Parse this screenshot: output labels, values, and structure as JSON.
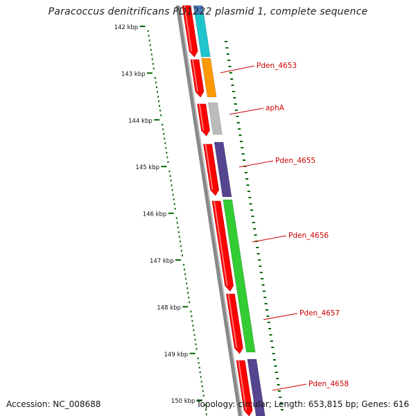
{
  "title": "Paracoccus denitrificans PD1222 plasmid 1, complete sequence",
  "accession": {
    "label": "Accession:",
    "value": "NC_008688"
  },
  "topology": {
    "label": "Topology:",
    "value": "circular"
  },
  "length": {
    "label": "Length:",
    "value": "653,815 bp"
  },
  "genes": {
    "label": "Genes:",
    "value": "616"
  },
  "ticks": [
    {
      "kbp": 142,
      "label": "142 kbp"
    },
    {
      "kbp": 143,
      "label": "143 kbp"
    },
    {
      "kbp": 144,
      "label": "144 kbp"
    },
    {
      "kbp": 145,
      "label": "145 kbp"
    },
    {
      "kbp": 146,
      "label": "146 kbp"
    },
    {
      "kbp": 147,
      "label": "147 kbp"
    },
    {
      "kbp": 148,
      "label": "148 kbp"
    },
    {
      "kbp": 149,
      "label": "149 kbp"
    },
    {
      "kbp": 150,
      "label": "150 kbp"
    }
  ],
  "gene_labels": [
    {
      "name": "Pden_4653",
      "gene_color": "#ff9900"
    },
    {
      "name": "aphA",
      "gene_color": "#bbbbbb"
    },
    {
      "name": "Pden_4655",
      "gene_color": "#55448f"
    },
    {
      "name": "Pden_4656",
      "gene_color": "#33cc33"
    },
    {
      "name": "Pden_4657",
      "gene_color": "#33cc33"
    },
    {
      "name": "Pden_4658",
      "gene_color": "#55448f"
    }
  ],
  "colors": {
    "backbone": "#888888",
    "cds_arrow": "#ff0000",
    "label_text": "#cc0000",
    "tick": "#006600"
  }
}
